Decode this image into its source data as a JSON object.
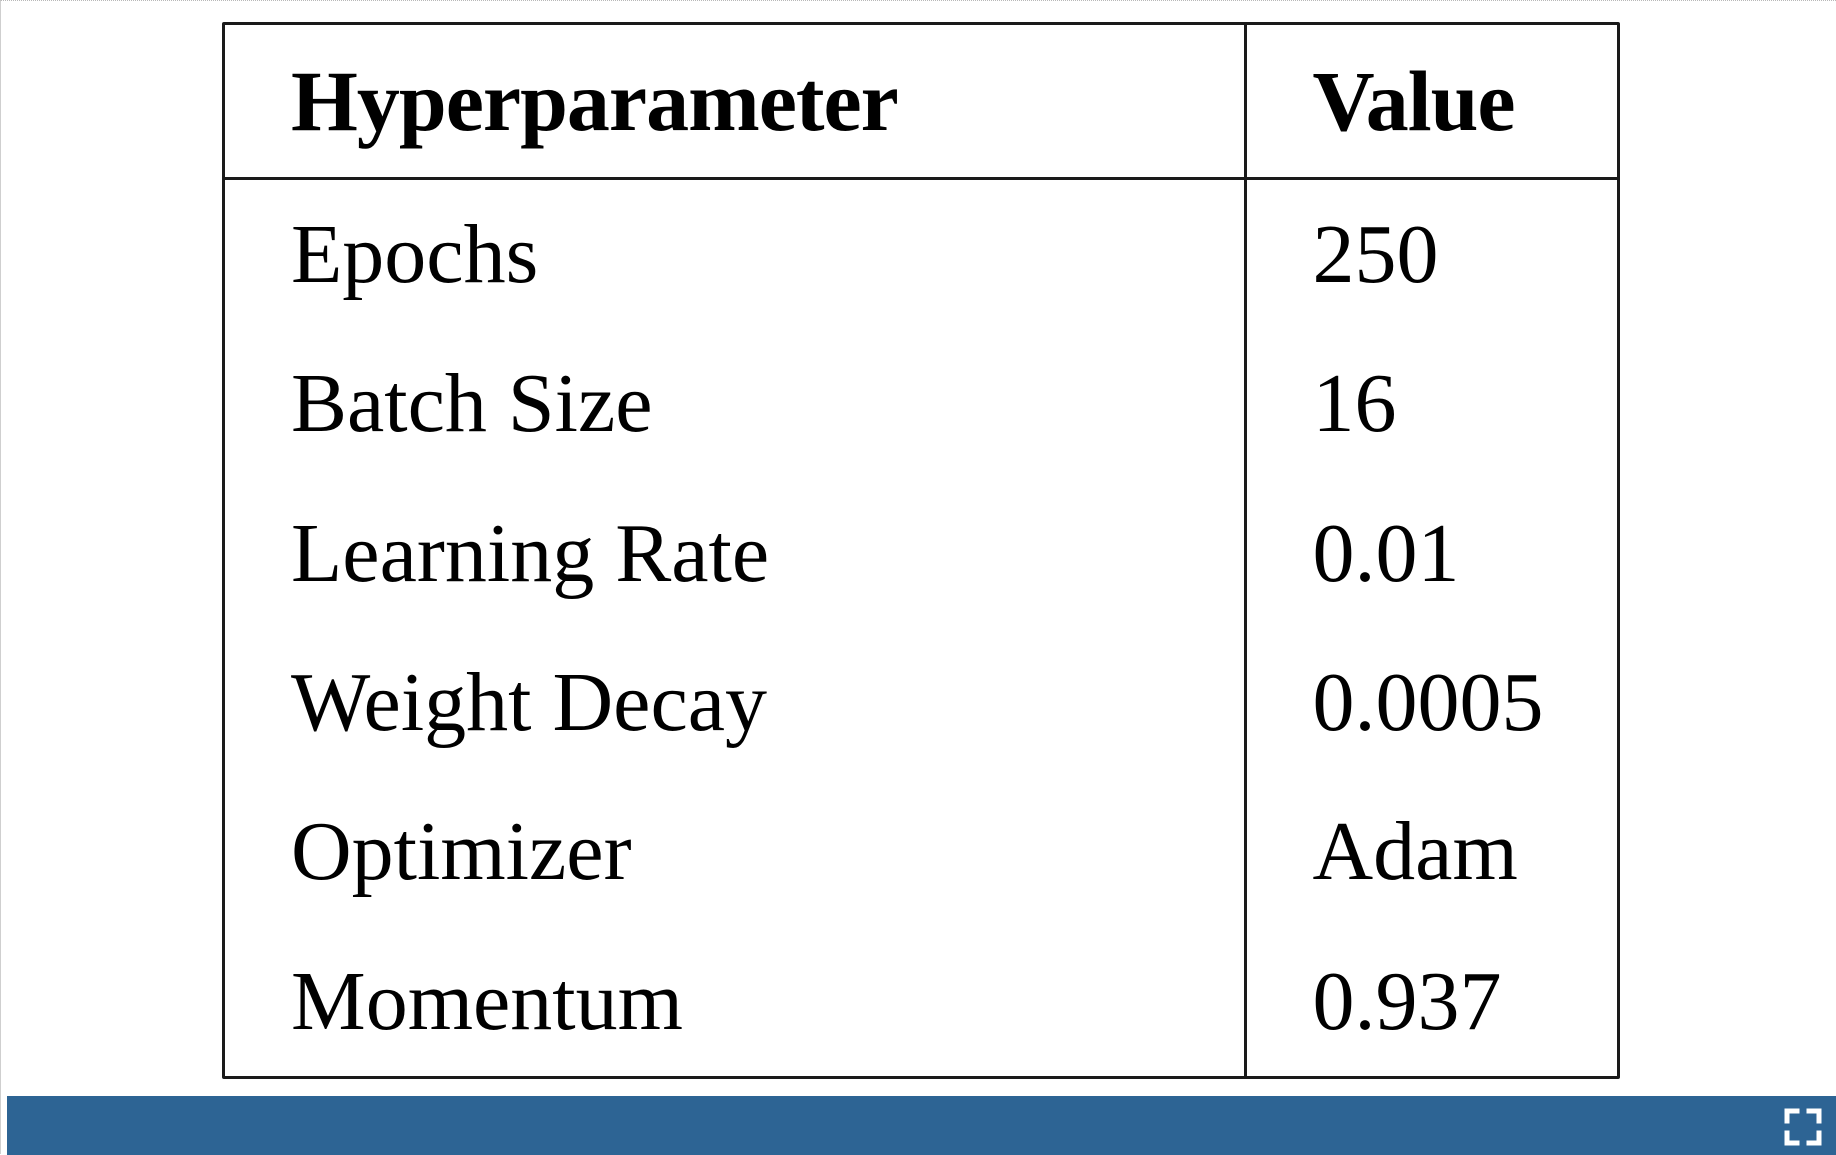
{
  "table": {
    "headers": [
      "Hyperparameter",
      "Value"
    ],
    "rows": [
      [
        "Epochs",
        "250"
      ],
      [
        "Batch Size",
        "16"
      ],
      [
        "Learning Rate",
        "0.01"
      ],
      [
        "Weight Decay",
        "0.0005"
      ],
      [
        "Optimizer",
        "Adam"
      ],
      [
        "Momentum",
        "0.937"
      ]
    ]
  },
  "footer": {
    "bar_color": "#2d6494",
    "fullscreen_icon": "expand-icon"
  }
}
